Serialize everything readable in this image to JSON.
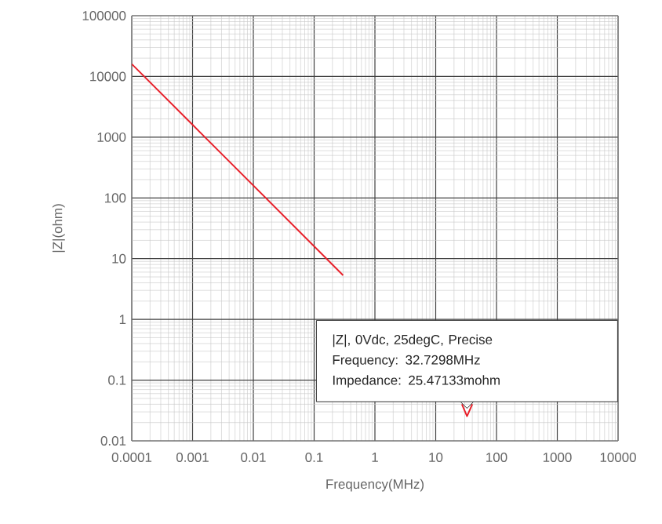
{
  "chart_data": {
    "type": "line",
    "xlabel": "Frequency(MHz)",
    "ylabel": "|Z|(ohm)",
    "log": "xy",
    "grid": true,
    "xlim": [
      0.0001,
      10000
    ],
    "ylim": [
      0.01,
      100000
    ],
    "xticks": [
      0.0001,
      0.001,
      0.01,
      0.1,
      1,
      10,
      100,
      1000,
      10000
    ],
    "yticks": [
      0.01,
      0.1,
      1,
      10,
      100,
      1000,
      10000,
      100000
    ],
    "series": [
      {
        "color": "#e8202a",
        "x": [
          0.0001,
          0.001,
          0.01,
          0.1,
          0.3,
          1,
          27,
          32.7298,
          40
        ],
        "values": [
          16000,
          1600,
          160,
          16,
          5.3,
          null,
          0.04,
          0.02547133,
          0.04
        ]
      }
    ],
    "annotations": [
      "|Z|, 0Vdc, 25degC, Precise",
      "Frequency: 32.7298MHz",
      "Impedance: 25.47133mohm"
    ]
  }
}
